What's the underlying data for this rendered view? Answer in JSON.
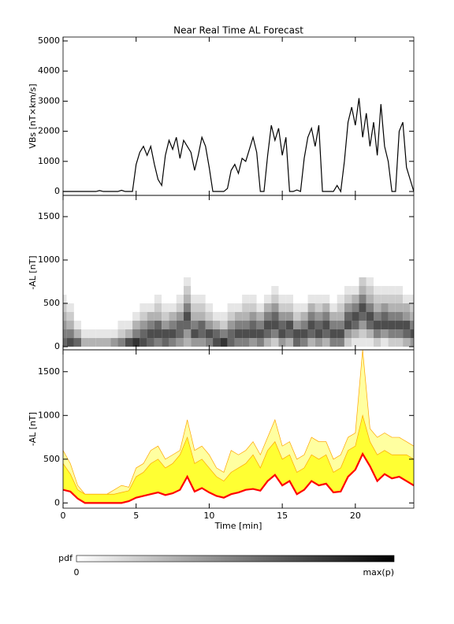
{
  "chart_data": [
    {
      "type": "line",
      "title": "Near Real Time AL Forecast",
      "ylabel": "VBs [nT×km/s]",
      "color": "#000000",
      "x": [
        0,
        0.25,
        0.5,
        0.75,
        1,
        1.25,
        1.5,
        1.75,
        2,
        2.25,
        2.5,
        2.75,
        3,
        3.25,
        3.5,
        3.75,
        4,
        4.25,
        4.5,
        4.75,
        5,
        5.25,
        5.5,
        5.75,
        6,
        6.25,
        6.5,
        6.75,
        7,
        7.25,
        7.5,
        7.75,
        8,
        8.25,
        8.5,
        8.75,
        9,
        9.25,
        9.5,
        9.75,
        10,
        10.25,
        10.5,
        10.75,
        11,
        11.25,
        11.5,
        11.75,
        12,
        12.25,
        12.5,
        12.75,
        13,
        13.25,
        13.5,
        13.75,
        14,
        14.25,
        14.5,
        14.75,
        15,
        15.25,
        15.5,
        15.75,
        16,
        16.25,
        16.5,
        16.75,
        17,
        17.25,
        17.5,
        17.75,
        18,
        18.25,
        18.5,
        18.75,
        19,
        19.25,
        19.5,
        19.75,
        20,
        20.25,
        20.5,
        20.75,
        21,
        21.25,
        21.5,
        21.75,
        22,
        22.25,
        22.5,
        22.75,
        23,
        23.25,
        23.5,
        23.75,
        24
      ],
      "values": [
        0,
        0,
        0,
        0,
        0,
        0,
        0,
        0,
        0,
        0,
        30,
        0,
        0,
        0,
        0,
        0,
        40,
        0,
        0,
        0,
        900,
        1300,
        1500,
        1200,
        1500,
        900,
        400,
        200,
        1200,
        1700,
        1400,
        1800,
        1100,
        1700,
        1500,
        1300,
        700,
        1200,
        1800,
        1500,
        800,
        0,
        0,
        0,
        0,
        100,
        700,
        900,
        600,
        1100,
        1000,
        1400,
        1800,
        1300,
        0,
        0,
        1200,
        2200,
        1700,
        2100,
        1200,
        1800,
        0,
        0,
        50,
        0,
        1100,
        1800,
        2100,
        1500,
        2200,
        0,
        0,
        0,
        0,
        200,
        0,
        1000,
        2300,
        2800,
        2200,
        3100,
        1800,
        2600,
        1500,
        2300,
        1200,
        2900,
        1500,
        1000,
        0,
        0,
        2000,
        2300,
        800,
        400,
        0
      ],
      "xlim": [
        0,
        24
      ],
      "xticks": [
        0,
        5,
        10,
        15,
        20
      ],
      "ylim": [
        -130,
        5130
      ],
      "yticks": [
        0,
        1000,
        2000,
        3000,
        4000,
        5000
      ]
    },
    {
      "type": "heatmap",
      "ylabel": "-AL [nT]",
      "x": [
        0,
        0.5,
        1,
        1.5,
        2,
        2.5,
        3,
        3.5,
        4,
        4.5,
        5,
        5.5,
        6,
        6.5,
        7,
        7.5,
        8,
        8.5,
        9,
        9.5,
        10,
        10.5,
        11,
        11.5,
        12,
        12.5,
        13,
        13.5,
        14,
        14.5,
        15,
        15.5,
        16,
        16.5,
        17,
        17.5,
        18,
        18.5,
        19,
        19.5,
        20,
        20.5,
        21,
        21.5,
        22,
        22.5,
        23,
        23.5,
        24
      ],
      "bins": [
        0,
        100,
        200,
        300,
        400,
        500,
        600,
        700,
        800
      ],
      "z": [
        [
          0.6,
          0.5,
          0.4,
          0.3,
          0.2,
          0.1,
          0,
          0
        ],
        [
          0.7,
          0.5,
          0.3,
          0.2,
          0.1,
          0,
          0,
          0
        ],
        [
          0.6,
          0.3,
          0.1,
          0,
          0,
          0,
          0,
          0
        ],
        [
          0.3,
          0.1,
          0,
          0,
          0,
          0,
          0,
          0
        ],
        [
          0.3,
          0.1,
          0,
          0,
          0,
          0,
          0,
          0
        ],
        [
          0.3,
          0.1,
          0,
          0,
          0,
          0,
          0,
          0
        ],
        [
          0.3,
          0.1,
          0,
          0,
          0,
          0,
          0,
          0
        ],
        [
          0.4,
          0.1,
          0,
          0,
          0,
          0,
          0,
          0
        ],
        [
          0.5,
          0.2,
          0.1,
          0,
          0,
          0,
          0,
          0
        ],
        [
          0.7,
          0.3,
          0.1,
          0,
          0,
          0,
          0,
          0
        ],
        [
          0.8,
          0.5,
          0.3,
          0.1,
          0,
          0,
          0,
          0
        ],
        [
          0.7,
          0.6,
          0.4,
          0.2,
          0.1,
          0,
          0,
          0
        ],
        [
          0.6,
          0.7,
          0.5,
          0.3,
          0.1,
          0,
          0,
          0
        ],
        [
          0.5,
          0.7,
          0.6,
          0.3,
          0.2,
          0.1,
          0,
          0
        ],
        [
          0.6,
          0.7,
          0.4,
          0.2,
          0.1,
          0,
          0,
          0
        ],
        [
          0.5,
          0.7,
          0.5,
          0.3,
          0.1,
          0,
          0,
          0
        ],
        [
          0.4,
          0.6,
          0.6,
          0.4,
          0.2,
          0.1,
          0,
          0
        ],
        [
          0.3,
          0.4,
          0.6,
          0.7,
          0.5,
          0.3,
          0.2,
          0.1
        ],
        [
          0.4,
          0.7,
          0.5,
          0.3,
          0.2,
          0.1,
          0,
          0
        ],
        [
          0.4,
          0.6,
          0.6,
          0.3,
          0.2,
          0.1,
          0,
          0
        ],
        [
          0.5,
          0.7,
          0.4,
          0.2,
          0.1,
          0,
          0,
          0
        ],
        [
          0.7,
          0.6,
          0.3,
          0.1,
          0,
          0,
          0,
          0
        ],
        [
          0.8,
          0.5,
          0.2,
          0.1,
          0,
          0,
          0,
          0
        ],
        [
          0.6,
          0.6,
          0.4,
          0.2,
          0.1,
          0,
          0,
          0
        ],
        [
          0.5,
          0.7,
          0.5,
          0.3,
          0.1,
          0,
          0,
          0
        ],
        [
          0.5,
          0.7,
          0.5,
          0.3,
          0.2,
          0.1,
          0,
          0
        ],
        [
          0.4,
          0.7,
          0.6,
          0.4,
          0.2,
          0.1,
          0,
          0
        ],
        [
          0.5,
          0.7,
          0.5,
          0.3,
          0.1,
          0,
          0,
          0
        ],
        [
          0.3,
          0.6,
          0.7,
          0.5,
          0.3,
          0.1,
          0,
          0
        ],
        [
          0.2,
          0.5,
          0.7,
          0.6,
          0.4,
          0.2,
          0.1,
          0
        ],
        [
          0.4,
          0.7,
          0.6,
          0.4,
          0.2,
          0.1,
          0,
          0
        ],
        [
          0.3,
          0.6,
          0.7,
          0.4,
          0.2,
          0.1,
          0,
          0
        ],
        [
          0.6,
          0.7,
          0.4,
          0.2,
          0.1,
          0,
          0,
          0
        ],
        [
          0.5,
          0.7,
          0.5,
          0.3,
          0.1,
          0,
          0,
          0
        ],
        [
          0.3,
          0.6,
          0.7,
          0.5,
          0.3,
          0.1,
          0,
          0
        ],
        [
          0.4,
          0.7,
          0.6,
          0.4,
          0.2,
          0.1,
          0,
          0
        ],
        [
          0.3,
          0.6,
          0.7,
          0.5,
          0.3,
          0.1,
          0,
          0
        ],
        [
          0.5,
          0.7,
          0.5,
          0.3,
          0.1,
          0,
          0,
          0
        ],
        [
          0.5,
          0.7,
          0.5,
          0.3,
          0.2,
          0.1,
          0,
          0
        ],
        [
          0.2,
          0.4,
          0.7,
          0.6,
          0.4,
          0.2,
          0.1,
          0
        ],
        [
          0.1,
          0.3,
          0.6,
          0.7,
          0.5,
          0.3,
          0.1,
          0
        ],
        [
          0.1,
          0.2,
          0.4,
          0.6,
          0.7,
          0.5,
          0.3,
          0.2
        ],
        [
          0.1,
          0.3,
          0.6,
          0.7,
          0.5,
          0.3,
          0.2,
          0.1
        ],
        [
          0.2,
          0.5,
          0.7,
          0.5,
          0.3,
          0.2,
          0.1,
          0
        ],
        [
          0.1,
          0.4,
          0.7,
          0.6,
          0.4,
          0.2,
          0.1,
          0
        ],
        [
          0.2,
          0.5,
          0.7,
          0.5,
          0.3,
          0.2,
          0.1,
          0
        ],
        [
          0.2,
          0.5,
          0.7,
          0.5,
          0.3,
          0.2,
          0.1,
          0
        ],
        [
          0.3,
          0.6,
          0.7,
          0.4,
          0.3,
          0.1,
          0,
          0
        ],
        [
          0.4,
          0.7,
          0.5,
          0.3,
          0.2,
          0.1,
          0,
          0
        ]
      ],
      "xlim": [
        0,
        24
      ],
      "xticks": [
        0,
        5,
        10,
        15,
        20
      ],
      "ylim": [
        -36,
        1745
      ],
      "yticks": [
        0,
        500,
        1000,
        1500
      ]
    },
    {
      "type": "area",
      "ylabel": "-AL [nT]",
      "xlabel": "Time [min]",
      "x": [
        0,
        0.5,
        1,
        1.5,
        2,
        2.5,
        3,
        3.5,
        4,
        4.5,
        5,
        5.5,
        6,
        6.5,
        7,
        7.5,
        8,
        8.5,
        9,
        9.5,
        10,
        10.5,
        11,
        11.5,
        12,
        12.5,
        13,
        13.5,
        14,
        14.5,
        15,
        15.5,
        16,
        16.5,
        17,
        17.5,
        18,
        18.5,
        19,
        19.5,
        20,
        20.5,
        21,
        21.5,
        22,
        22.5,
        23,
        23.5,
        24
      ],
      "series": [
        {
          "color": "#ff0000",
          "values": [
            150,
            130,
            50,
            0,
            0,
            0,
            0,
            0,
            0,
            20,
            60,
            80,
            100,
            120,
            90,
            110,
            150,
            300,
            130,
            170,
            120,
            80,
            60,
            100,
            120,
            150,
            160,
            140,
            250,
            320,
            200,
            250,
            100,
            150,
            250,
            200,
            220,
            120,
            130,
            300,
            380,
            560,
            420,
            250,
            330,
            280,
            300,
            250,
            200
          ]
        },
        {
          "color": "#ffff33",
          "values": [
            450,
            330,
            150,
            100,
            100,
            100,
            100,
            100,
            120,
            140,
            300,
            350,
            450,
            500,
            400,
            450,
            550,
            750,
            450,
            500,
            400,
            300,
            250,
            350,
            400,
            450,
            550,
            400,
            600,
            700,
            500,
            550,
            350,
            400,
            550,
            500,
            550,
            350,
            400,
            600,
            650,
            1000,
            700,
            550,
            600,
            550,
            550,
            550,
            500
          ]
        },
        {
          "color": "#ffffa0",
          "values": [
            600,
            450,
            200,
            100,
            100,
            100,
            100,
            150,
            200,
            180,
            400,
            450,
            600,
            650,
            500,
            550,
            600,
            950,
            600,
            650,
            550,
            400,
            350,
            600,
            550,
            600,
            700,
            550,
            750,
            950,
            650,
            700,
            500,
            550,
            750,
            700,
            700,
            500,
            550,
            750,
            800,
            1750,
            850,
            750,
            800,
            750,
            750,
            700,
            650
          ]
        }
      ],
      "xlim": [
        0,
        24
      ],
      "xticks": [
        0,
        5,
        10,
        15,
        20
      ],
      "ylim": [
        -60,
        1750
      ],
      "yticks": [
        0,
        500,
        1000,
        1500
      ]
    }
  ],
  "colorbar": {
    "label": "pdf",
    "min_label": "0",
    "max_label": "max(p)"
  }
}
